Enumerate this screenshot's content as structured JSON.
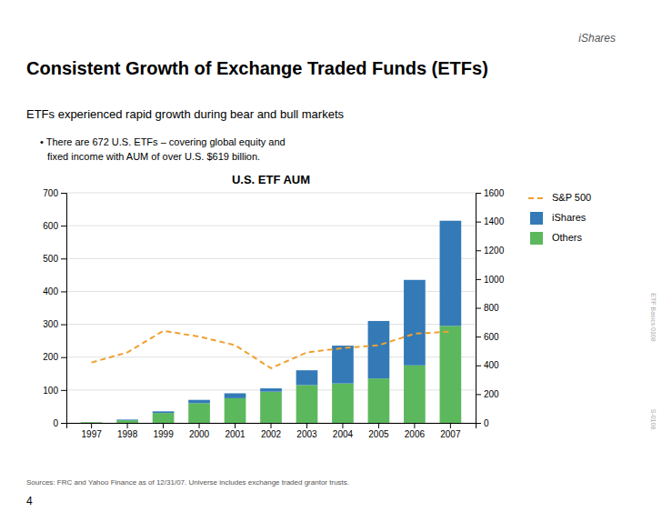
{
  "title": "Consistent Growth of Exchange Traded Funds (ETFs)",
  "subtitle": "ETFs experienced rapid growth during bear and bull markets",
  "annotations": [
    "• There are 672 U.S. ETFs – covering global equity and\nfixed income with AUM of over U.S. $619 billion.",
    "iShares",
    "Sources: FRC and Yahoo Finance as of 12/31/07. Universe includes exchange traded grantor trusts.",
    "4",
    "ETF Basics 0108",
    "S-0108"
  ],
  "chart_data": {
    "type": "bar",
    "title": "U.S. ETF AUM",
    "stacked": true,
    "grid": true,
    "legend": "right",
    "categories": [
      "1997",
      "1998",
      "1999",
      "2000",
      "2001",
      "2002",
      "2003",
      "2004",
      "2005",
      "2006",
      "2007"
    ],
    "series": [
      {
        "name": "Others",
        "type": "bar",
        "color": "#5cb85c",
        "values": [
          2,
          8,
          30,
          60,
          75,
          95,
          115,
          120,
          135,
          175,
          295
        ]
      },
      {
        "name": "iShares",
        "type": "bar",
        "color": "#337ab7",
        "values": [
          0,
          2,
          5,
          10,
          15,
          10,
          45,
          115,
          175,
          260,
          320
        ]
      },
      {
        "name": "S&P 500",
        "type": "line",
        "axis": "y2",
        "color": "#f0a030",
        "line_style": "dashed",
        "values": [
          420,
          490,
          640,
          600,
          540,
          380,
          490,
          520,
          540,
          620,
          635
        ]
      }
    ],
    "ylim": [
      0,
      700
    ],
    "yticks": [
      0,
      100,
      200,
      300,
      400,
      500,
      600,
      700
    ],
    "y2lim": [
      0,
      1600
    ],
    "y2ticks": [
      0,
      200,
      400,
      600,
      800,
      1000,
      1200,
      1400,
      1600
    ]
  }
}
